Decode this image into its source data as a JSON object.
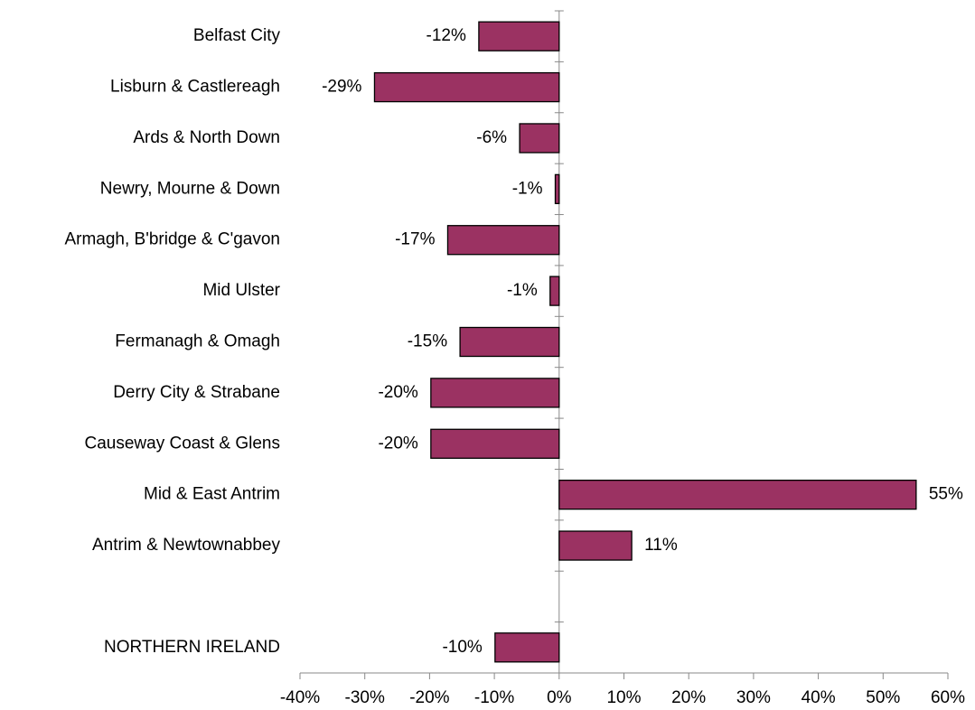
{
  "chart_data": {
    "type": "barh",
    "categories": [
      "Belfast City",
      "Lisburn & Castlereagh",
      "Ards & North Down",
      "Newry, Mourne & Down",
      "Armagh, B'bridge & C'gavon",
      "Mid Ulster",
      "Fermanagh & Omagh",
      "Derry City & Strabane",
      "Causeway Coast & Glens",
      "Mid & East Antrim",
      "Antrim & Newtownabbey",
      null,
      "NORTHERN IRELAND"
    ],
    "values": [
      -12.4,
      -28.5,
      -6.1,
      -0.6,
      -17.2,
      -1.4,
      -15.3,
      -19.8,
      -19.8,
      55.1,
      11.2,
      null,
      -9.9
    ],
    "value_labels": [
      "-12%",
      "-29%",
      "-6%",
      "-1%",
      "-17%",
      "-1%",
      "-15%",
      "-20%",
      "-20%",
      "55%",
      "11%",
      null,
      "-10%"
    ],
    "color": "#9b3262",
    "xlim": [
      -40,
      60
    ],
    "xticks": [
      {
        "value": -40,
        "label": "-40%"
      },
      {
        "value": -30,
        "label": "-30%"
      },
      {
        "value": -20,
        "label": "-20%"
      },
      {
        "value": -10,
        "label": "-10%"
      },
      {
        "value": 0,
        "label": "0%"
      },
      {
        "value": 10,
        "label": "10%"
      },
      {
        "value": 20,
        "label": "20%"
      },
      {
        "value": 30,
        "label": "30%"
      },
      {
        "value": 40,
        "label": "40%"
      },
      {
        "value": 50,
        "label": "50%"
      },
      {
        "value": 60,
        "label": "60%"
      }
    ]
  }
}
